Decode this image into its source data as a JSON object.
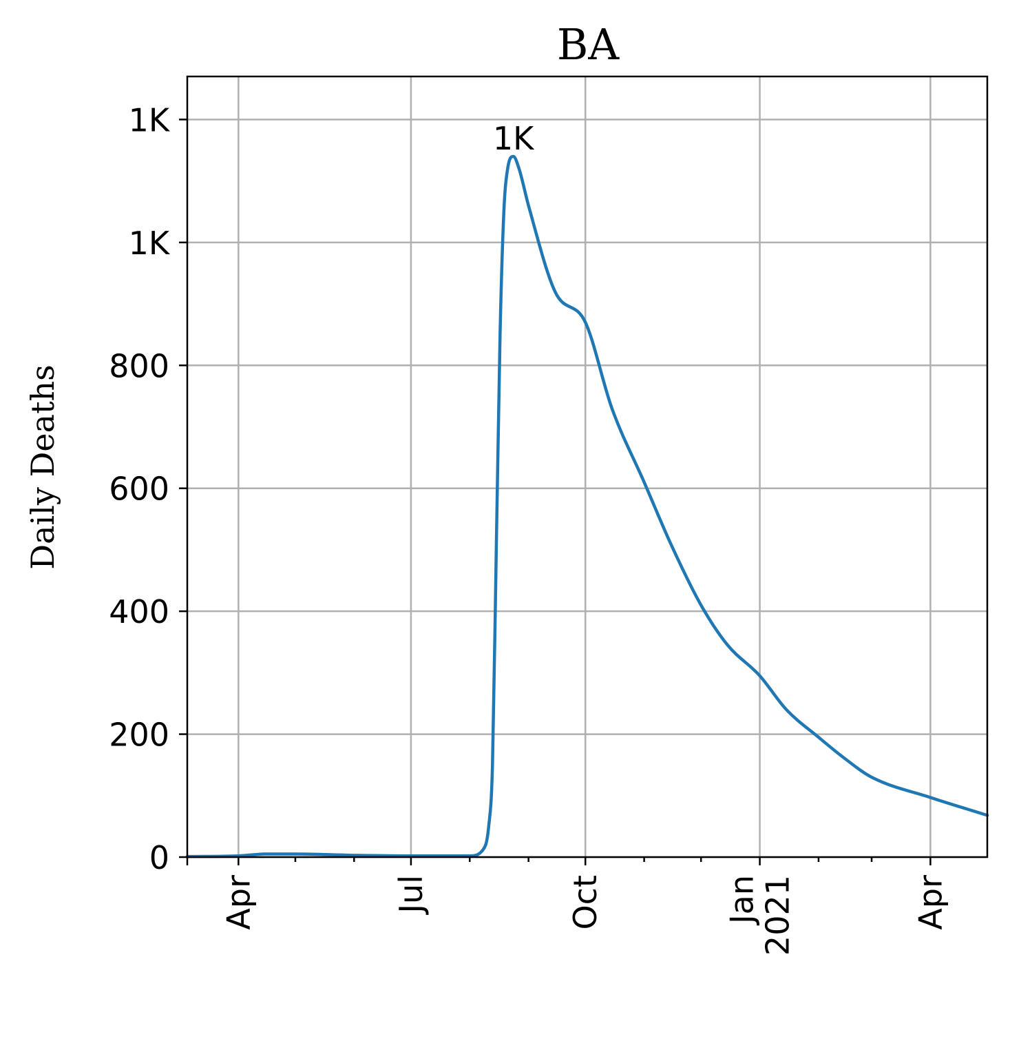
{
  "chart_data": {
    "type": "line",
    "title": "BA",
    "xlabel": "",
    "ylabel": "Daily Deaths",
    "x_axis": {
      "type": "date",
      "range": [
        "2020-03-05",
        "2021-05-01"
      ],
      "ticks": [
        {
          "date": "2020-04-01",
          "label": [
            "Apr"
          ]
        },
        {
          "date": "2020-07-01",
          "label": [
            "Jul"
          ]
        },
        {
          "date": "2020-10-01",
          "label": [
            "Oct"
          ]
        },
        {
          "date": "2021-01-01",
          "label": [
            "Jan",
            "2021"
          ]
        },
        {
          "date": "2021-04-01",
          "label": [
            "Apr"
          ]
        }
      ],
      "minor_ticks": [
        "2020-05-01",
        "2020-06-01",
        "2020-08-01",
        "2020-09-01",
        "2020-11-01",
        "2020-12-01",
        "2021-02-01",
        "2021-03-01"
      ]
    },
    "y_axis": {
      "range": [
        0,
        1270
      ],
      "ticks": [
        {
          "value": 0,
          "label": "0"
        },
        {
          "value": 200,
          "label": "200"
        },
        {
          "value": 400,
          "label": "400"
        },
        {
          "value": 600,
          "label": "600"
        },
        {
          "value": 800,
          "label": "800"
        },
        {
          "value": 1000,
          "label": "1K"
        },
        {
          "value": 1200,
          "label": "1K"
        }
      ]
    },
    "grid": true,
    "legend": "none",
    "color": "#1f77b4",
    "series": [
      {
        "points": [
          [
            "2020-03-05",
            1
          ],
          [
            "2020-04-01",
            2
          ],
          [
            "2020-04-15",
            5
          ],
          [
            "2020-05-01",
            5
          ],
          [
            "2020-06-01",
            3
          ],
          [
            "2020-07-01",
            2
          ],
          [
            "2020-08-01",
            2
          ],
          [
            "2020-08-08",
            12
          ],
          [
            "2020-08-11",
            50
          ],
          [
            "2020-08-13",
            150
          ],
          [
            "2020-08-15",
            500
          ],
          [
            "2020-08-17",
            850
          ],
          [
            "2020-08-19",
            1050
          ],
          [
            "2020-08-21",
            1120
          ],
          [
            "2020-08-24",
            1140
          ],
          [
            "2020-08-27",
            1120
          ],
          [
            "2020-09-01",
            1060
          ],
          [
            "2020-09-15",
            920
          ],
          [
            "2020-10-01",
            870
          ],
          [
            "2020-10-15",
            730
          ],
          [
            "2020-11-01",
            610
          ],
          [
            "2020-11-15",
            510
          ],
          [
            "2020-12-01",
            410
          ],
          [
            "2020-12-15",
            345
          ],
          [
            "2021-01-01",
            295
          ],
          [
            "2021-01-15",
            240
          ],
          [
            "2021-02-01",
            195
          ],
          [
            "2021-02-15",
            160
          ],
          [
            "2021-03-01",
            130
          ],
          [
            "2021-04-01",
            97
          ],
          [
            "2021-05-01",
            68
          ]
        ]
      }
    ],
    "annotations": [
      {
        "text": "1K",
        "date": "2020-08-24",
        "value": 1140
      }
    ]
  }
}
